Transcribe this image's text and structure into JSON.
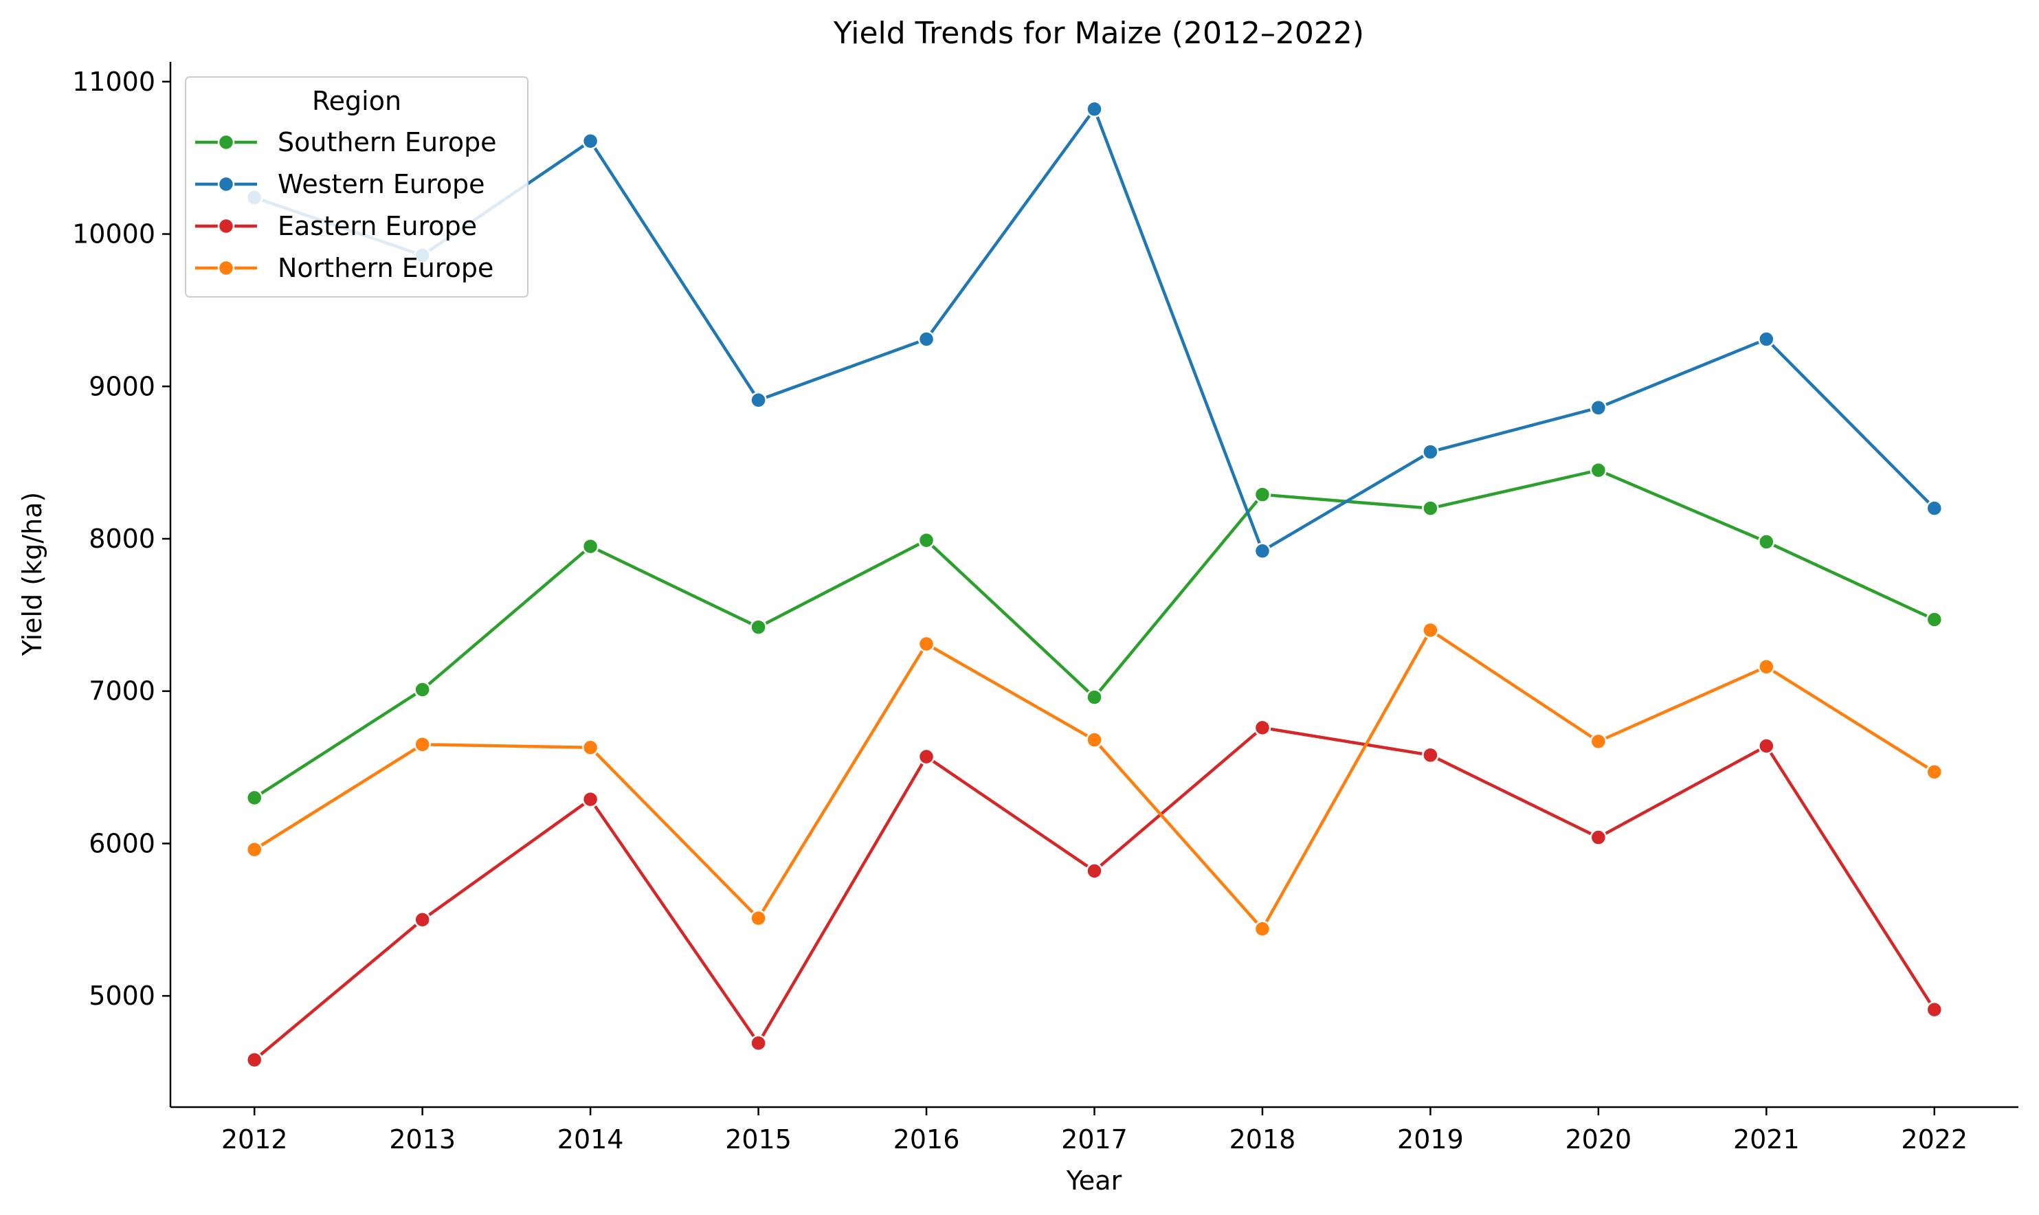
{
  "chart_data": {
    "type": "line",
    "title": "Yield Trends for Maize (2012–2022)",
    "xlabel": "Year",
    "ylabel": "Yield (kg/ha)",
    "x": [
      2012,
      2013,
      2014,
      2015,
      2016,
      2017,
      2018,
      2019,
      2020,
      2021,
      2022
    ],
    "x_tick_labels": [
      "2012",
      "2013",
      "2014",
      "2015",
      "2016",
      "2017",
      "2018",
      "2019",
      "2020",
      "2021",
      "2022"
    ],
    "y_ticks": [
      5000,
      6000,
      7000,
      8000,
      9000,
      10000,
      11000
    ],
    "y_tick_labels": [
      "5000",
      "6000",
      "7000",
      "8000",
      "9000",
      "10000",
      "11000"
    ],
    "xlim": [
      2011.5,
      2022.5
    ],
    "ylim": [
      4270,
      11130
    ],
    "grid": false,
    "legend": {
      "title": "Region",
      "placement": "top-left"
    },
    "series": [
      {
        "name": "Southern Europe",
        "color": "#2ca02c",
        "values": [
          6300,
          7010,
          7950,
          7420,
          7990,
          6960,
          8290,
          8200,
          8450,
          7980,
          7470
        ]
      },
      {
        "name": "Western Europe",
        "color": "#1f77b4",
        "values": [
          10240,
          9860,
          10610,
          8910,
          9310,
          10820,
          7920,
          8570,
          8860,
          9310,
          8200
        ]
      },
      {
        "name": "Eastern Europe",
        "color": "#d62728",
        "values": [
          4580,
          5500,
          6290,
          4690,
          6570,
          5820,
          6760,
          6580,
          6040,
          6640,
          4910
        ]
      },
      {
        "name": "Northern Europe",
        "color": "#ff7f0e",
        "values": [
          5960,
          6650,
          6630,
          5510,
          7310,
          6680,
          5440,
          7400,
          6670,
          7160,
          6470
        ]
      }
    ]
  }
}
